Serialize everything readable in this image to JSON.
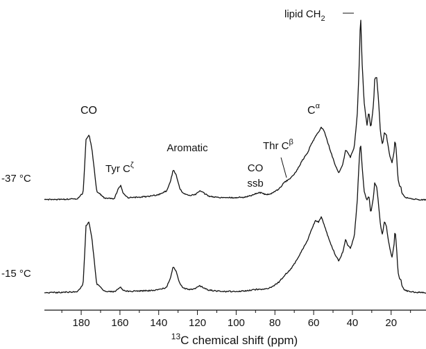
{
  "chart_data": {
    "type": "line",
    "xlabel_main": "C chemical shift (ppm)",
    "xlabel_sup": "13",
    "x_reversed": true,
    "xlim": [
      199,
      2
    ],
    "xticks": [
      180,
      160,
      140,
      120,
      100,
      80,
      60,
      40,
      20
    ],
    "grid": false,
    "legend": "none",
    "series": [
      {
        "name": "-37 °C",
        "points": [
          [
            199,
            0
          ],
          [
            190,
            0.3
          ],
          [
            182,
            0.5
          ],
          [
            179,
            4
          ],
          [
            177.5,
            34
          ],
          [
            176,
            37
          ],
          [
            174.5,
            29
          ],
          [
            172,
            5
          ],
          [
            168,
            1
          ],
          [
            163,
            0.6
          ],
          [
            160.5,
            7
          ],
          [
            159.5,
            8
          ],
          [
            158.5,
            4
          ],
          [
            156,
            1.2
          ],
          [
            150,
            1.5
          ],
          [
            145,
            2
          ],
          [
            140,
            3
          ],
          [
            136,
            5
          ],
          [
            134,
            10
          ],
          [
            132.5,
            17
          ],
          [
            131,
            14
          ],
          [
            129,
            6
          ],
          [
            127,
            3.5
          ],
          [
            124,
            2.5
          ],
          [
            121,
            3
          ],
          [
            119,
            5
          ],
          [
            117,
            4
          ],
          [
            114,
            2
          ],
          [
            108,
            1.2
          ],
          [
            102,
            1.2
          ],
          [
            96,
            1.5
          ],
          [
            92,
            2.5
          ],
          [
            89,
            4
          ],
          [
            87,
            4
          ],
          [
            85,
            3
          ],
          [
            82,
            3.5
          ],
          [
            78,
            6
          ],
          [
            75,
            10
          ],
          [
            72,
            12
          ],
          [
            69,
            16
          ],
          [
            66,
            22
          ],
          [
            63,
            27
          ],
          [
            61,
            32
          ],
          [
            59,
            36
          ],
          [
            57.5,
            38
          ],
          [
            56,
            41
          ],
          [
            54.5,
            39
          ],
          [
            52,
            30
          ],
          [
            49,
            20
          ],
          [
            47,
            15
          ],
          [
            45,
            20
          ],
          [
            43.5,
            28
          ],
          [
            42.5,
            27
          ],
          [
            41,
            24
          ],
          [
            39,
            30
          ],
          [
            37.5,
            48
          ],
          [
            36.5,
            75
          ],
          [
            35.8,
            106
          ],
          [
            35,
            78
          ],
          [
            34,
            56
          ],
          [
            32.5,
            42
          ],
          [
            31.5,
            50
          ],
          [
            30.5,
            40
          ],
          [
            29,
            55
          ],
          [
            28.5,
            68
          ],
          [
            27.5,
            70
          ],
          [
            26.5,
            56
          ],
          [
            25.5,
            38
          ],
          [
            24.5,
            31
          ],
          [
            23.5,
            38
          ],
          [
            22.5,
            37
          ],
          [
            21.5,
            30
          ],
          [
            20.5,
            24
          ],
          [
            19.5,
            21
          ],
          [
            18.5,
            27
          ],
          [
            18,
            34
          ],
          [
            17.5,
            30
          ],
          [
            17,
            22
          ],
          [
            16.5,
            12
          ],
          [
            15.5,
            7
          ],
          [
            15,
            8
          ],
          [
            14.5,
            4
          ],
          [
            13,
            1.5
          ],
          [
            10,
            0.5
          ],
          [
            2,
            0
          ]
        ]
      },
      {
        "name": "-15 °C",
        "points": [
          [
            199,
            0
          ],
          [
            190,
            0.3
          ],
          [
            182,
            0.5
          ],
          [
            179,
            5
          ],
          [
            177.5,
            38
          ],
          [
            176,
            40
          ],
          [
            174.5,
            31
          ],
          [
            172,
            5
          ],
          [
            168,
            1
          ],
          [
            163,
            0.6
          ],
          [
            160.5,
            2.5
          ],
          [
            159.5,
            3
          ],
          [
            158.5,
            1.5
          ],
          [
            156,
            0.8
          ],
          [
            150,
            1
          ],
          [
            145,
            1.2
          ],
          [
            140,
            1.8
          ],
          [
            136,
            3
          ],
          [
            134,
            8
          ],
          [
            132.5,
            15
          ],
          [
            131,
            12
          ],
          [
            129,
            5
          ],
          [
            127,
            2.5
          ],
          [
            124,
            1.8
          ],
          [
            121,
            2.5
          ],
          [
            119,
            4
          ],
          [
            117,
            3
          ],
          [
            114,
            1.5
          ],
          [
            108,
            0.8
          ],
          [
            102,
            0.8
          ],
          [
            96,
            1
          ],
          [
            92,
            1.5
          ],
          [
            89,
            2
          ],
          [
            87,
            2
          ],
          [
            85,
            2
          ],
          [
            82,
            3
          ],
          [
            78,
            6
          ],
          [
            75,
            10
          ],
          [
            72,
            13
          ],
          [
            69,
            18
          ],
          [
            66,
            24
          ],
          [
            63,
            30
          ],
          [
            61,
            36
          ],
          [
            59,
            41
          ],
          [
            57.5,
            40
          ],
          [
            56,
            43
          ],
          [
            54.5,
            38
          ],
          [
            52,
            30
          ],
          [
            49,
            22
          ],
          [
            47,
            18
          ],
          [
            45,
            23
          ],
          [
            43.5,
            30
          ],
          [
            42.5,
            27
          ],
          [
            41,
            25
          ],
          [
            39,
            32
          ],
          [
            37.5,
            52
          ],
          [
            36.5,
            75
          ],
          [
            35.8,
            85
          ],
          [
            35,
            72
          ],
          [
            34,
            58
          ],
          [
            32.5,
            52
          ],
          [
            31.5,
            55
          ],
          [
            30.5,
            45
          ],
          [
            29,
            55
          ],
          [
            28.5,
            62
          ],
          [
            27.5,
            60
          ],
          [
            26.5,
            50
          ],
          [
            25.5,
            38
          ],
          [
            24.5,
            33
          ],
          [
            23.5,
            40
          ],
          [
            22.5,
            38
          ],
          [
            21.5,
            30
          ],
          [
            20.5,
            24
          ],
          [
            19.5,
            20
          ],
          [
            18.5,
            27
          ],
          [
            18,
            36
          ],
          [
            17.5,
            30
          ],
          [
            17,
            22
          ],
          [
            16.5,
            12
          ],
          [
            15.5,
            7
          ],
          [
            15,
            8
          ],
          [
            14.5,
            4
          ],
          [
            13,
            1.5
          ],
          [
            10,
            0.5
          ],
          [
            2,
            0
          ]
        ]
      }
    ],
    "annotations": [
      {
        "id": "co",
        "text": "CO",
        "sup": "",
        "sub": "",
        "line2": ""
      },
      {
        "id": "tyr",
        "text": "Tyr C",
        "sup": "ζ",
        "sub": "",
        "line2": ""
      },
      {
        "id": "aromatic",
        "text": "Aromatic",
        "sup": "",
        "sub": "",
        "line2": ""
      },
      {
        "id": "cossb",
        "text": "CO",
        "sup": "",
        "sub": "",
        "line2": "ssb"
      },
      {
        "id": "thr",
        "text": "Thr C",
        "sup": "β",
        "sub": "",
        "line2": ""
      },
      {
        "id": "calpha",
        "text": "C",
        "sup": "α",
        "sub": "",
        "line2": ""
      },
      {
        "id": "lipid",
        "text": "lipid CH",
        "sup": "",
        "sub": "2",
        "line2": ""
      }
    ]
  }
}
